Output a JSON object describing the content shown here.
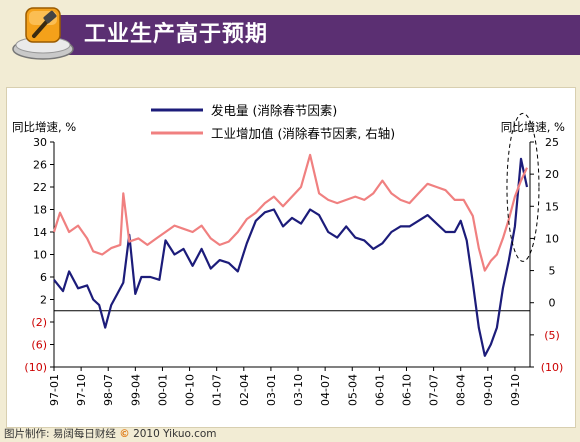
{
  "header": {
    "title": "工业生产高于预期"
  },
  "footer": {
    "source_prefix": "图片制作: 易阔每日财经",
    "copyright_symbol": "©",
    "source_suffix": "2010 Yikuo.com"
  },
  "chart_data": {
    "type": "line",
    "left_axis_label": "同比增速, %",
    "right_axis_label": "同比增速, %",
    "left_ticks": [
      "30",
      "26",
      "22",
      "18",
      "14",
      "10",
      "6",
      "2",
      "(2)",
      "(6)",
      "(10)"
    ],
    "left_ylim": [
      -10,
      30
    ],
    "right_ticks": [
      "25",
      "20",
      "15",
      "10",
      "5",
      "0",
      "(5)",
      "(10)"
    ],
    "right_ylim": [
      -10,
      25
    ],
    "x_ticks": [
      "97-01",
      "97-10",
      "98-07",
      "99-04",
      "00-01",
      "00-10",
      "01-07",
      "02-04",
      "03-01",
      "03-10",
      "04-07",
      "05-04",
      "06-01",
      "06-10",
      "07-07",
      "08-04",
      "09-01",
      "09-10"
    ],
    "x_range": [
      "1997-01",
      "2010-03"
    ],
    "colors": {
      "electricity": "#1c1c7a",
      "industry": "#f08080"
    },
    "series": [
      {
        "name": "发电量 (消除春节因素)",
        "axis": "left",
        "points": [
          [
            "1997-01",
            5.5
          ],
          [
            "1997-04",
            3.5
          ],
          [
            "1997-06",
            7
          ],
          [
            "1997-09",
            4
          ],
          [
            "1997-12",
            4.5
          ],
          [
            "1998-02",
            2
          ],
          [
            "1998-04",
            1
          ],
          [
            "1998-06",
            -3
          ],
          [
            "1998-08",
            1
          ],
          [
            "1998-10",
            3
          ],
          [
            "1998-12",
            5
          ],
          [
            "1999-02",
            13.5
          ],
          [
            "1999-04",
            3
          ],
          [
            "1999-06",
            6
          ],
          [
            "1999-09",
            6
          ],
          [
            "1999-12",
            5.5
          ],
          [
            "2000-02",
            12.5
          ],
          [
            "2000-05",
            10
          ],
          [
            "2000-08",
            11
          ],
          [
            "2000-11",
            8
          ],
          [
            "2001-02",
            11
          ],
          [
            "2001-05",
            7.5
          ],
          [
            "2001-08",
            9
          ],
          [
            "2001-11",
            8.5
          ],
          [
            "2002-02",
            7
          ],
          [
            "2002-05",
            12
          ],
          [
            "2002-08",
            16
          ],
          [
            "2002-11",
            17.5
          ],
          [
            "2003-02",
            18
          ],
          [
            "2003-05",
            15
          ],
          [
            "2003-08",
            16.5
          ],
          [
            "2003-11",
            15.5
          ],
          [
            "2004-02",
            18
          ],
          [
            "2004-05",
            17
          ],
          [
            "2004-08",
            14
          ],
          [
            "2004-11",
            13
          ],
          [
            "2005-02",
            15
          ],
          [
            "2005-05",
            13
          ],
          [
            "2005-08",
            12.5
          ],
          [
            "2005-11",
            11
          ],
          [
            "2006-02",
            12
          ],
          [
            "2006-05",
            14
          ],
          [
            "2006-08",
            15
          ],
          [
            "2006-11",
            15
          ],
          [
            "2007-02",
            16
          ],
          [
            "2007-05",
            17
          ],
          [
            "2007-08",
            15.5
          ],
          [
            "2007-11",
            14
          ],
          [
            "2008-02",
            14
          ],
          [
            "2008-04",
            16
          ],
          [
            "2008-06",
            12.5
          ],
          [
            "2008-08",
            5
          ],
          [
            "2008-10",
            -3
          ],
          [
            "2008-12",
            -8
          ],
          [
            "2009-02",
            -6
          ],
          [
            "2009-04",
            -3
          ],
          [
            "2009-06",
            4
          ],
          [
            "2009-08",
            9
          ],
          [
            "2009-10",
            15
          ],
          [
            "2009-12",
            27
          ],
          [
            "2010-02",
            22
          ]
        ]
      },
      {
        "name": "工业增加值 (消除春节因素, 右轴)",
        "axis": "right",
        "points": [
          [
            "1997-01",
            11
          ],
          [
            "1997-03",
            14
          ],
          [
            "1997-06",
            11
          ],
          [
            "1997-09",
            12
          ],
          [
            "1997-12",
            10
          ],
          [
            "1998-02",
            8
          ],
          [
            "1998-05",
            7.5
          ],
          [
            "1998-08",
            8.5
          ],
          [
            "1998-11",
            9
          ],
          [
            "1998-12",
            17
          ],
          [
            "1999-02",
            9.5
          ],
          [
            "1999-05",
            10
          ],
          [
            "1999-08",
            9
          ],
          [
            "1999-11",
            10
          ],
          [
            "2000-02",
            11
          ],
          [
            "2000-05",
            12
          ],
          [
            "2000-08",
            11.5
          ],
          [
            "2000-11",
            11
          ],
          [
            "2001-02",
            12
          ],
          [
            "2001-05",
            10
          ],
          [
            "2001-08",
            9
          ],
          [
            "2001-11",
            9.5
          ],
          [
            "2002-02",
            11
          ],
          [
            "2002-05",
            13
          ],
          [
            "2002-08",
            14
          ],
          [
            "2002-11",
            15.5
          ],
          [
            "2003-02",
            16.5
          ],
          [
            "2003-05",
            15
          ],
          [
            "2003-08",
            16.5
          ],
          [
            "2003-11",
            18
          ],
          [
            "2004-02",
            23
          ],
          [
            "2004-05",
            17
          ],
          [
            "2004-08",
            16
          ],
          [
            "2004-11",
            15.5
          ],
          [
            "2005-02",
            16
          ],
          [
            "2005-05",
            16.5
          ],
          [
            "2005-08",
            16
          ],
          [
            "2005-11",
            17
          ],
          [
            "2006-02",
            19
          ],
          [
            "2006-05",
            17
          ],
          [
            "2006-08",
            16
          ],
          [
            "2006-11",
            15.5
          ],
          [
            "2007-02",
            17
          ],
          [
            "2007-05",
            18.5
          ],
          [
            "2007-08",
            18
          ],
          [
            "2007-11",
            17.5
          ],
          [
            "2008-02",
            16
          ],
          [
            "2008-05",
            16
          ],
          [
            "2008-08",
            13.5
          ],
          [
            "2008-10",
            8.5
          ],
          [
            "2008-12",
            5
          ],
          [
            "2009-02",
            6.5
          ],
          [
            "2009-04",
            7.5
          ],
          [
            "2009-06",
            10
          ],
          [
            "2009-08",
            13
          ],
          [
            "2009-10",
            16.5
          ],
          [
            "2009-12",
            19
          ],
          [
            "2010-02",
            21
          ]
        ]
      }
    ]
  }
}
